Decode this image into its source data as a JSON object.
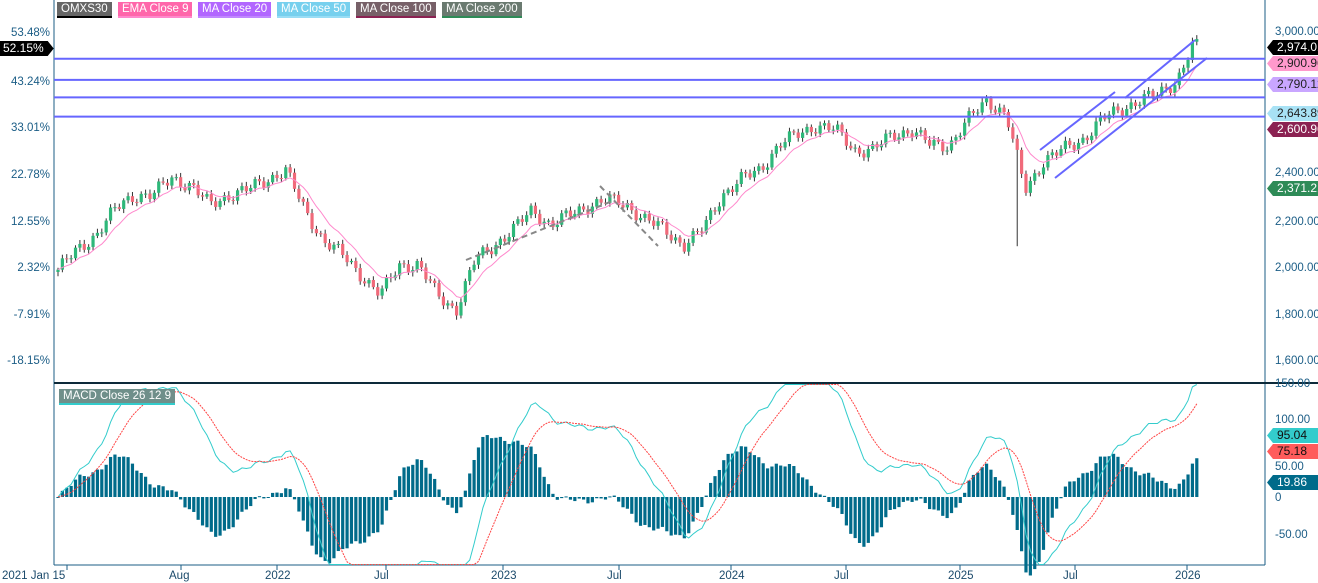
{
  "legend": [
    {
      "label": "OMXS30",
      "bg": "#666666",
      "line": "#000000"
    },
    {
      "label": "EMA  Close 9",
      "bg": "#ff66aa",
      "line": "#ff88cc"
    },
    {
      "label": "MA  Close 20",
      "bg": "#b266ff",
      "line": "#c088ff"
    },
    {
      "label": "MA  Close 50",
      "bg": "#77d0ee",
      "line": "#99ddf5"
    },
    {
      "label": "MA  Close 100",
      "bg": "#776068",
      "line": "#8b2252"
    },
    {
      "label": "MA  Close 200",
      "bg": "#6a7a70",
      "line": "#2e8b57"
    }
  ],
  "macd_legend": "MACD  Close 26 12 9",
  "left_axis": [
    "53.48%",
    "43.24%",
    "33.01%",
    "22.78%",
    "12.55%",
    "2.32%",
    "-7.91%",
    "-18.15%"
  ],
  "left_current": "52.15%",
  "price_axis": [
    "3,000.00",
    "2,400.00",
    "2,200.00",
    "2,000.00",
    "1,800.00",
    "1,600.00"
  ],
  "macd_axis": [
    "150.00",
    "100.00",
    "50.00",
    "0",
    "-50.00"
  ],
  "price_tags": [
    {
      "label": "2,974.01",
      "bg": "#000000",
      "fg": "#ffffff"
    },
    {
      "label": "2,900.96",
      "bg": "#ff99cc",
      "fg": "#222222"
    },
    {
      "label": "2,790.12",
      "bg": "#c9a6ff",
      "fg": "#222222"
    },
    {
      "label": "2,643.89",
      "bg": "#a8e2f5",
      "fg": "#222222"
    },
    {
      "label": "2,600.96",
      "bg": "#8b2252",
      "fg": "#ffffff"
    },
    {
      "label": "2,371.21",
      "bg": "#2e8b57",
      "fg": "#ffffff"
    }
  ],
  "macd_tags": [
    {
      "label": "95.04",
      "bg": "#33cccc",
      "fg": "#111111"
    },
    {
      "label": "75.18",
      "bg": "#ff5c5c",
      "fg": "#111111"
    },
    {
      "label": "19.86",
      "bg": "#006b8a",
      "fg": "#ffffff"
    }
  ],
  "time_axis": [
    "2021 Jan 15",
    "Aug",
    "2022",
    "Jul",
    "2023",
    "Jul",
    "2024",
    "Jul",
    "2025",
    "Jul",
    "2026"
  ],
  "colors": {
    "up": "#2eb87a",
    "down": "#f06a7a",
    "hline": "#6666ff",
    "macd": "#33cccc",
    "signal": "#ff4444",
    "hist": "#006b8a"
  },
  "chart_data": {
    "type": "candlestick",
    "title": "OMXS30",
    "interval": "weekly",
    "monthly_closes": [
      1990,
      2070,
      2140,
      2245,
      2308,
      2308,
      2381,
      2350,
      2266,
      2308,
      2330,
      2373,
      2415,
      2245,
      2116,
      2052,
      1967,
      1882,
      2010,
      2010,
      1882,
      1818,
      2031,
      2095,
      2159,
      2245,
      2180,
      2223,
      2266,
      2287,
      2266,
      2202,
      2159,
      2095,
      2159,
      2308,
      2373,
      2415,
      2522,
      2565,
      2607,
      2586,
      2501,
      2501,
      2565,
      2586,
      2522,
      2522,
      2629,
      2714,
      2650,
      2330,
      2458,
      2501,
      2543,
      2629,
      2671,
      2714,
      2735,
      2799,
      2974
    ],
    "last_close": 2974.01,
    "horizontal_levels": [
      2890,
      2800,
      2725,
      2643
    ],
    "ylim": [
      1600,
      3000
    ],
    "macd": {
      "macd": 95.04,
      "signal": 75.18,
      "histogram": 19.86,
      "ylim": [
        -60,
        150
      ]
    }
  }
}
